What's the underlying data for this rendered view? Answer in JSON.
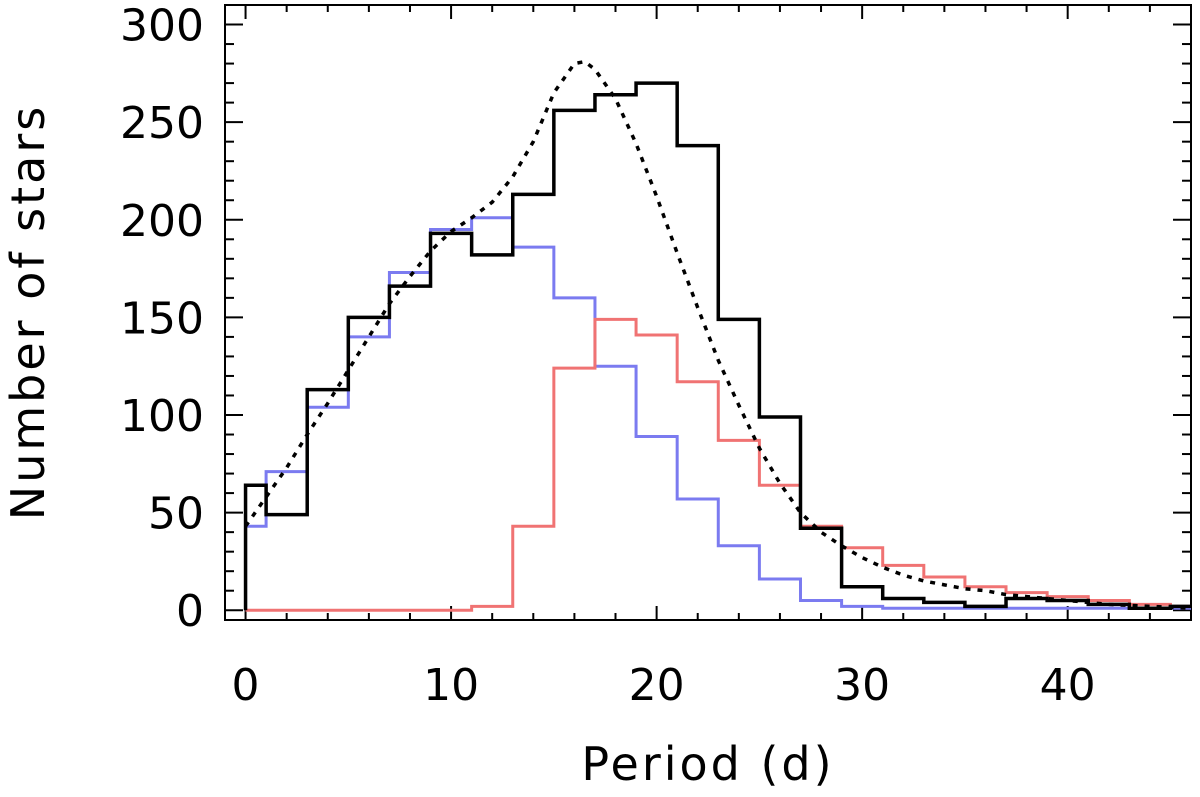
{
  "chart_data": {
    "type": "line",
    "title": "",
    "xlabel": "Period (d)",
    "ylabel": "Number of stars",
    "xlim": [
      -1,
      46
    ],
    "ylim": [
      -5,
      310
    ],
    "xticks": [
      0,
      10,
      20,
      30,
      40
    ],
    "yticks": [
      0,
      50,
      100,
      150,
      200,
      250,
      300
    ],
    "grid": false,
    "legend": "none",
    "series": [
      {
        "style": "step",
        "color": "#7b7bf0",
        "bin_edges": [
          0,
          1,
          3,
          5,
          7,
          9,
          11,
          13,
          15,
          17,
          19,
          21,
          23,
          25,
          27,
          29,
          31,
          33,
          35,
          37,
          39,
          41,
          43,
          45,
          46
        ],
        "values": [
          43,
          71,
          104,
          140,
          173,
          195,
          201,
          186,
          160,
          125,
          89,
          57,
          33,
          16,
          5,
          2,
          1,
          1,
          1,
          1,
          1,
          1,
          1,
          1
        ]
      },
      {
        "style": "step",
        "color": "#f07373",
        "bin_edges": [
          0,
          1,
          3,
          5,
          7,
          9,
          11,
          13,
          15,
          17,
          19,
          21,
          23,
          25,
          27,
          29,
          31,
          33,
          35,
          37,
          39,
          41,
          43,
          45,
          46
        ],
        "values": [
          0,
          0,
          0,
          0,
          0,
          0,
          2,
          43,
          124,
          149,
          141,
          117,
          87,
          64,
          43,
          32,
          23,
          17,
          12,
          9,
          7,
          5,
          3,
          2
        ]
      },
      {
        "style": "step",
        "color": "#000000",
        "bin_edges": [
          0,
          1,
          3,
          5,
          7,
          9,
          11,
          13,
          15,
          17,
          19,
          21,
          23,
          25,
          27,
          29,
          31,
          33,
          35,
          37,
          39,
          41,
          43,
          45,
          46
        ],
        "values": [
          64,
          49,
          113,
          150,
          166,
          193,
          182,
          213,
          256,
          264,
          270,
          238,
          149,
          99,
          42,
          12,
          6,
          4,
          2,
          6,
          5,
          3,
          1,
          2
        ]
      },
      {
        "style": "dotted",
        "color": "#000000",
        "x": [
          0,
          1,
          2,
          3,
          4,
          5,
          6,
          7,
          8,
          9,
          10,
          11,
          12,
          13,
          14,
          15,
          16,
          16.5,
          17,
          18,
          19,
          20,
          21,
          22,
          23,
          24,
          25,
          26,
          27,
          28,
          29,
          30,
          31,
          32,
          33,
          34,
          35,
          36,
          37,
          38,
          39,
          40,
          41,
          42,
          43,
          44,
          45,
          46
        ],
        "y": [
          43,
          58,
          73,
          90,
          106,
          123,
          140,
          157,
          171,
          184,
          194,
          201,
          209,
          222,
          240,
          265,
          280,
          281,
          277,
          262,
          239,
          212,
          183,
          155,
          128,
          105,
          83,
          65,
          50,
          40,
          33,
          27,
          22,
          18,
          15,
          13,
          11,
          10,
          8,
          7,
          6,
          5,
          4,
          3,
          2.5,
          2,
          1.5,
          1
        ]
      }
    ]
  }
}
